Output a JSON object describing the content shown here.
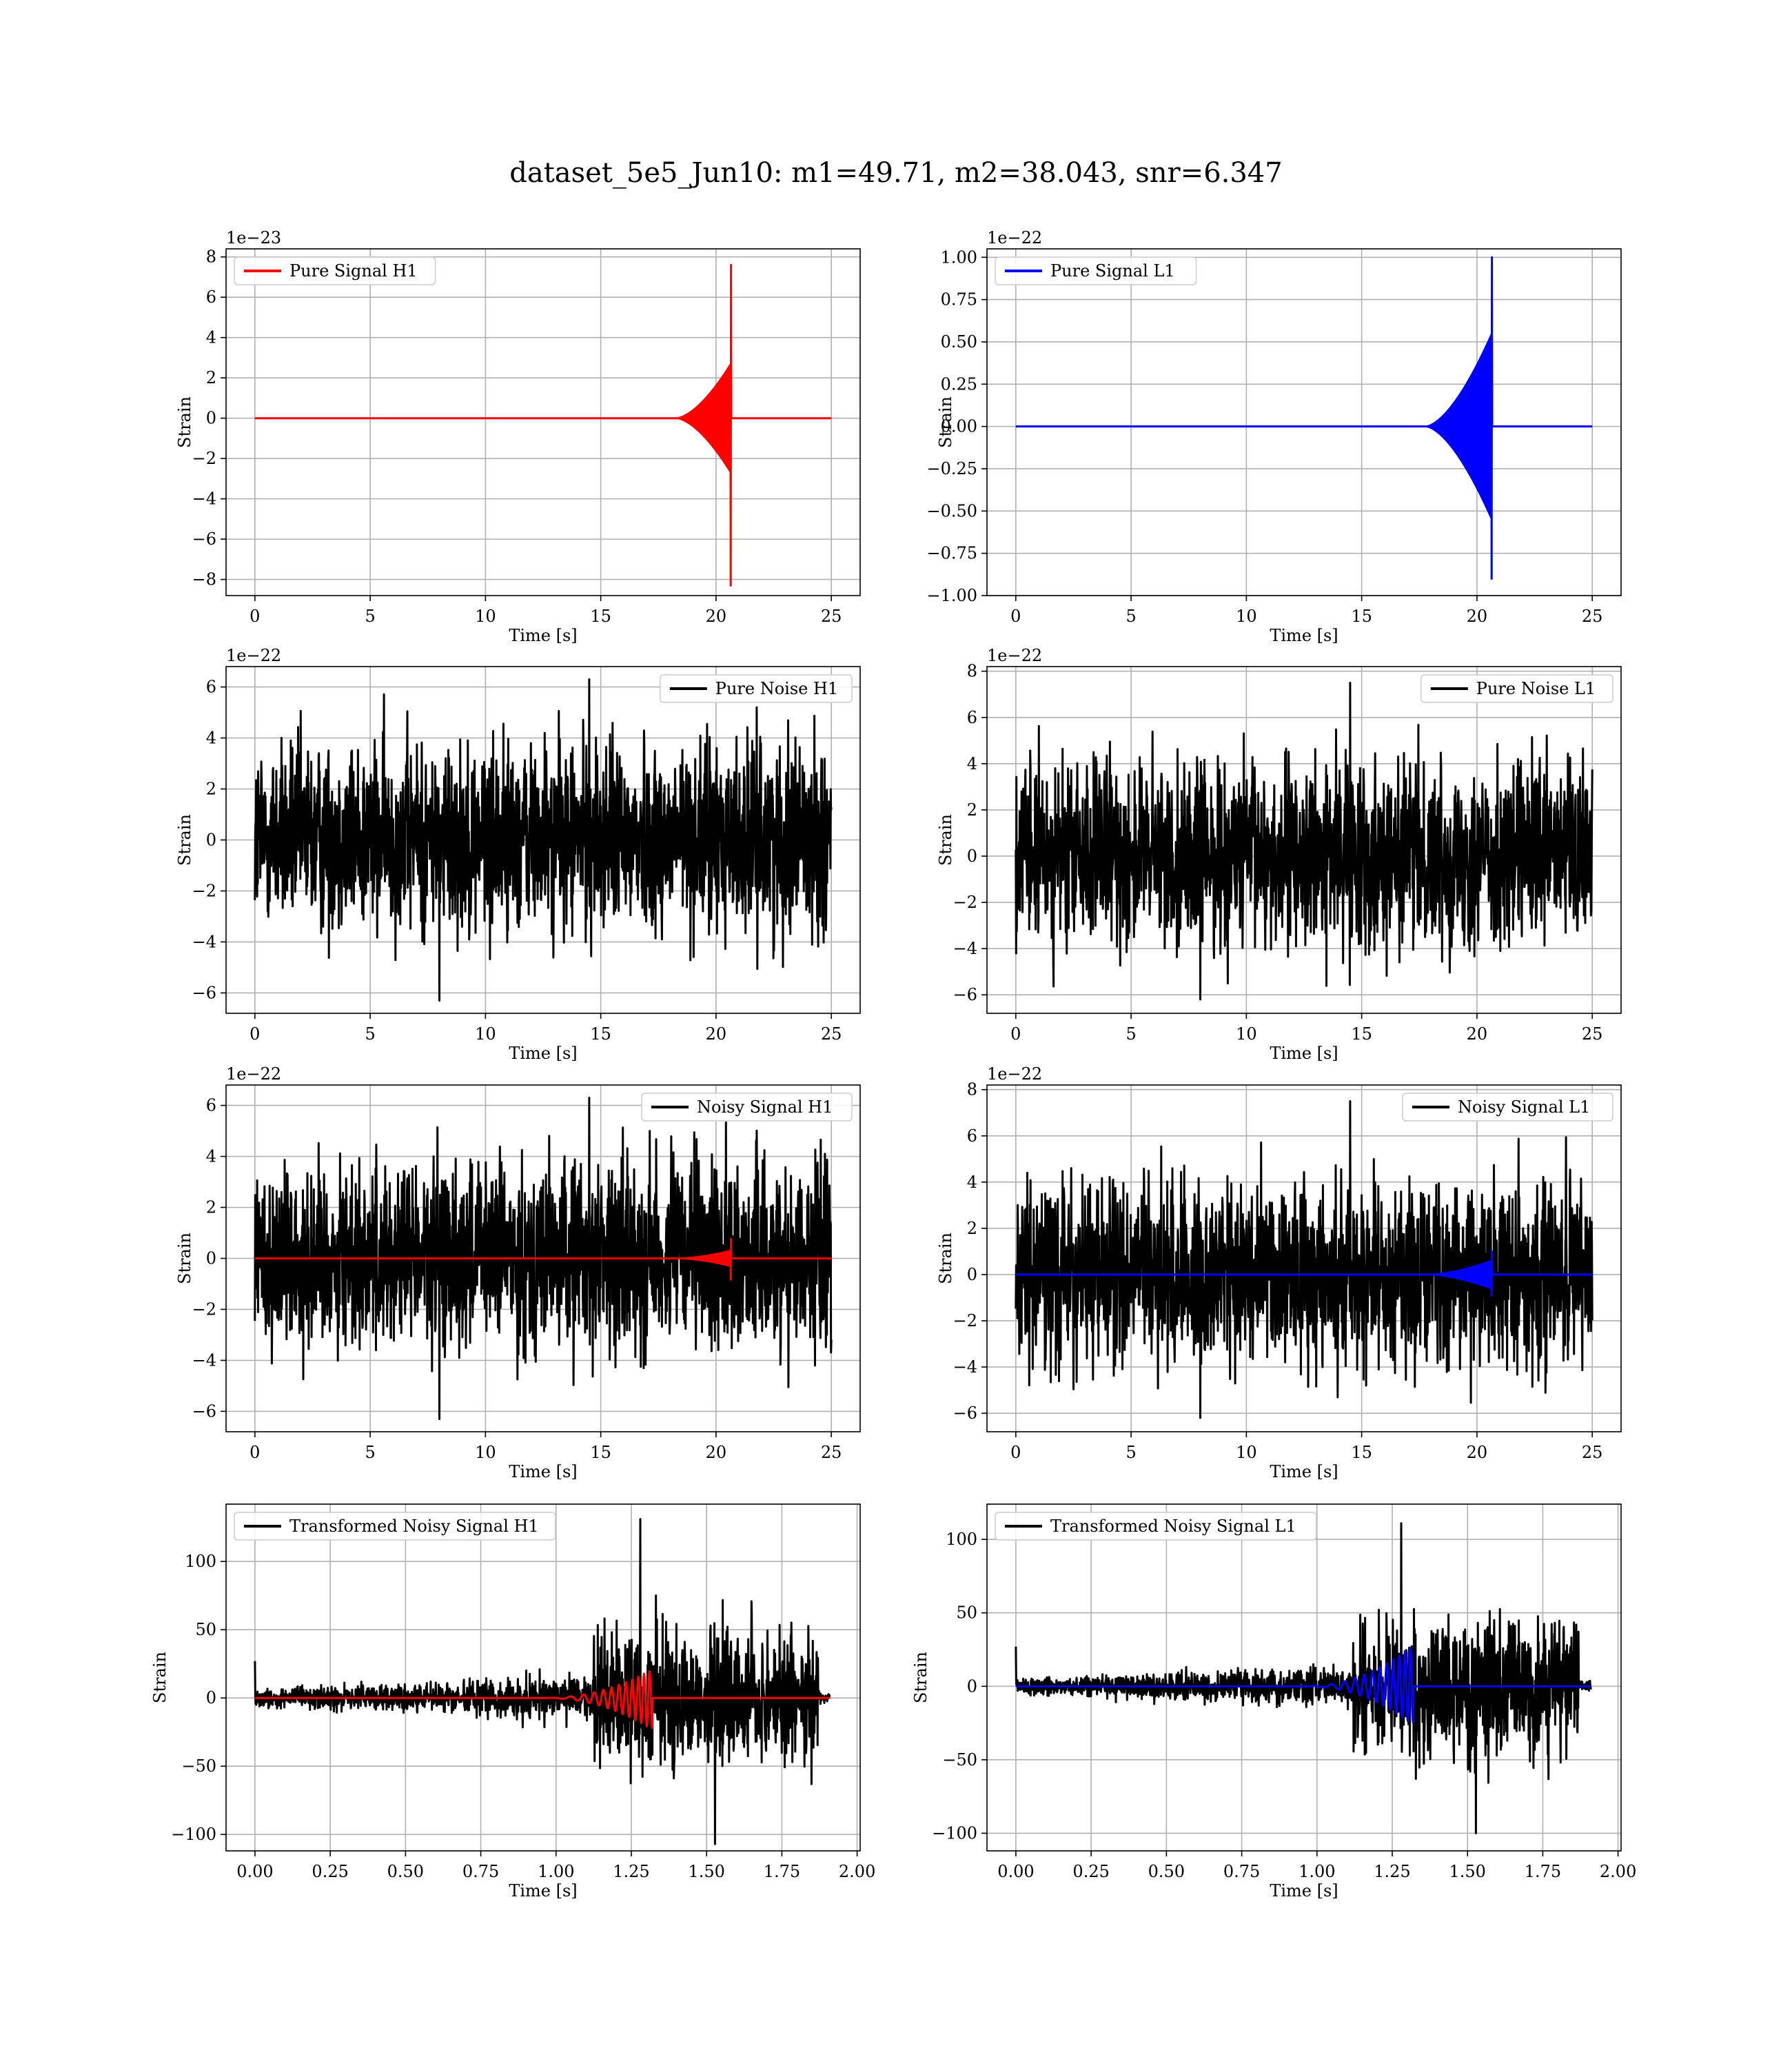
{
  "title": "dataset_5e5_Jun10: m1=49.71, m2=38.043, snr=6.347",
  "colors": {
    "h1": "#ff0000",
    "l1": "#0000ff",
    "noise": "#000000",
    "grid": "#b0b0b0"
  },
  "chart_data": [
    {
      "type": "line",
      "grid": true,
      "legend": "top-left",
      "xlabel": "Time [s]",
      "ylabel": "Strain",
      "offset_text": "1e−23",
      "xlim": [
        -1.25,
        26.25
      ],
      "ylim": [
        -8.8,
        8.4
      ],
      "xticks": [
        0,
        5,
        10,
        15,
        20,
        25
      ],
      "xtick_labels": [
        "0",
        "5",
        "10",
        "15",
        "20",
        "25"
      ],
      "yticks": [
        -8,
        -6,
        -4,
        -2,
        0,
        2,
        4,
        6,
        8
      ],
      "ytick_labels": [
        "−8",
        "−6",
        "−4",
        "−2",
        "0",
        "2",
        "4",
        "6",
        "8"
      ],
      "series": [
        {
          "name": "Pure Signal H1",
          "color": "#ff0000",
          "kind": "chirp",
          "x_range": [
            0,
            25
          ],
          "merger_time": 20.65,
          "chirp_start": 18.3,
          "peak_amplitude": 2.7,
          "peak_max": 7.6,
          "peak_min": -8.3
        }
      ]
    },
    {
      "type": "line",
      "grid": true,
      "legend": "top-left",
      "xlabel": "Time [s]",
      "ylabel": "Strain",
      "offset_text": "1e−22",
      "xlim": [
        -1.25,
        26.25
      ],
      "ylim": [
        -1.0,
        1.05
      ],
      "xticks": [
        0,
        5,
        10,
        15,
        20,
        25
      ],
      "xtick_labels": [
        "0",
        "5",
        "10",
        "15",
        "20",
        "25"
      ],
      "yticks": [
        -1.0,
        -0.75,
        -0.5,
        -0.25,
        0,
        0.25,
        0.5,
        0.75,
        1.0
      ],
      "ytick_labels": [
        "−1.00",
        "−0.75",
        "−0.50",
        "−0.25",
        "0.00",
        "0.25",
        "0.50",
        "0.75",
        "1.00"
      ],
      "series": [
        {
          "name": "Pure Signal L1",
          "color": "#0000ff",
          "kind": "chirp",
          "x_range": [
            0,
            25
          ],
          "merger_time": 20.65,
          "chirp_start": 17.8,
          "peak_amplitude": 0.55,
          "peak_max": 1.0,
          "peak_min": -0.9
        }
      ]
    },
    {
      "type": "line",
      "grid": true,
      "legend": "top-right",
      "xlabel": "Time [s]",
      "ylabel": "Strain",
      "offset_text": "1e−22",
      "xlim": [
        -1.25,
        26.25
      ],
      "ylim": [
        -6.8,
        6.8
      ],
      "xticks": [
        0,
        5,
        10,
        15,
        20,
        25
      ],
      "xtick_labels": [
        "0",
        "5",
        "10",
        "15",
        "20",
        "25"
      ],
      "yticks": [
        -6,
        -4,
        -2,
        0,
        2,
        4,
        6
      ],
      "ytick_labels": [
        "−6",
        "−4",
        "−2",
        "0",
        "2",
        "4",
        "6"
      ],
      "series": [
        {
          "name": "Pure Noise H1",
          "color": "#000000",
          "kind": "noise",
          "x_range": [
            0,
            25
          ],
          "band_max": 3.9,
          "band_min": -3.7,
          "spike_max": 6.3,
          "spike_min": -6.3
        }
      ]
    },
    {
      "type": "line",
      "grid": true,
      "legend": "top-right",
      "xlabel": "Time [s]",
      "ylabel": "Strain",
      "offset_text": "1e−22",
      "xlim": [
        -1.25,
        26.25
      ],
      "ylim": [
        -6.8,
        8.2
      ],
      "xticks": [
        0,
        5,
        10,
        15,
        20,
        25
      ],
      "xtick_labels": [
        "0",
        "5",
        "10",
        "15",
        "20",
        "25"
      ],
      "yticks": [
        -6,
        -4,
        -2,
        0,
        2,
        4,
        6,
        8
      ],
      "ytick_labels": [
        "−6",
        "−4",
        "−2",
        "0",
        "2",
        "4",
        "6",
        "8"
      ],
      "series": [
        {
          "name": "Pure Noise L1",
          "color": "#000000",
          "kind": "noise",
          "x_range": [
            0,
            25
          ],
          "band_max": 4.1,
          "band_min": -4.0,
          "spike_max": 7.5,
          "spike_min": -6.2
        }
      ]
    },
    {
      "type": "line",
      "grid": true,
      "legend": "top-right",
      "xlabel": "Time [s]",
      "ylabel": "Strain",
      "offset_text": "1e−22",
      "xlim": [
        -1.25,
        26.25
      ],
      "ylim": [
        -6.8,
        6.8
      ],
      "xticks": [
        0,
        5,
        10,
        15,
        20,
        25
      ],
      "xtick_labels": [
        "0",
        "5",
        "10",
        "15",
        "20",
        "25"
      ],
      "yticks": [
        -6,
        -4,
        -2,
        0,
        2,
        4,
        6
      ],
      "ytick_labels": [
        "−6",
        "−4",
        "−2",
        "0",
        "2",
        "4",
        "6"
      ],
      "series": [
        {
          "name": "Noisy Signal H1",
          "color": "#000000",
          "kind": "noise",
          "x_range": [
            0,
            25
          ],
          "band_max": 3.9,
          "band_min": -3.7,
          "spike_max": 6.3,
          "spike_min": -6.3
        },
        {
          "color": "#ff0000",
          "kind": "chirp",
          "x_range": [
            0,
            25
          ],
          "merger_time": 20.65,
          "chirp_start": 18.5,
          "peak_amplitude": 0.3,
          "peak_max": 0.76,
          "peak_min": -0.83
        }
      ]
    },
    {
      "type": "line",
      "grid": true,
      "legend": "top-right",
      "xlabel": "Time [s]",
      "ylabel": "Strain",
      "offset_text": "1e−22",
      "xlim": [
        -1.25,
        26.25
      ],
      "ylim": [
        -6.8,
        8.2
      ],
      "xticks": [
        0,
        5,
        10,
        15,
        20,
        25
      ],
      "xtick_labels": [
        "0",
        "5",
        "10",
        "15",
        "20",
        "25"
      ],
      "yticks": [
        -6,
        -4,
        -2,
        0,
        2,
        4,
        6,
        8
      ],
      "ytick_labels": [
        "−6",
        "−4",
        "−2",
        "0",
        "2",
        "4",
        "6",
        "8"
      ],
      "series": [
        {
          "name": "Noisy Signal L1",
          "color": "#000000",
          "kind": "noise",
          "x_range": [
            0,
            25
          ],
          "band_max": 4.1,
          "band_min": -4.0,
          "spike_max": 7.5,
          "spike_min": -6.2
        },
        {
          "color": "#0000ff",
          "kind": "chirp",
          "x_range": [
            0,
            25
          ],
          "merger_time": 20.65,
          "chirp_start": 18.0,
          "peak_amplitude": 0.6,
          "peak_max": 1.0,
          "peak_min": -0.9
        }
      ]
    },
    {
      "type": "line",
      "grid": true,
      "legend": "top-left",
      "xlabel": "Time [s]",
      "ylabel": "Strain",
      "offset_text": "",
      "xlim": [
        -0.096,
        2.01
      ],
      "ylim": [
        -112,
        142
      ],
      "xticks": [
        0,
        0.25,
        0.5,
        0.75,
        1.0,
        1.25,
        1.5,
        1.75,
        2.0
      ],
      "xtick_labels": [
        "0.00",
        "0.25",
        "0.50",
        "0.75",
        "1.00",
        "1.25",
        "1.50",
        "1.75",
        "2.00"
      ],
      "yticks": [
        -100,
        -50,
        0,
        50,
        100
      ],
      "ytick_labels": [
        "−100",
        "−50",
        "0",
        "50",
        "100"
      ],
      "series": [
        {
          "name": "Transformed Noisy Signal H1",
          "color": "#000000",
          "kind": "whitened",
          "x_range": [
            0,
            1.91
          ],
          "pre_amp": 10,
          "jump_time": 1.12,
          "post_amp": 45,
          "cut_time": 1.87,
          "spike_max": 131,
          "spike_min": -107
        },
        {
          "color": "#ff0000",
          "kind": "wchirp",
          "x_range": [
            0,
            1.91
          ],
          "chirp_start": 0.95,
          "merger_time": 1.31,
          "peak_max": 20,
          "peak_min": -22
        }
      ]
    },
    {
      "type": "line",
      "grid": true,
      "legend": "top-left",
      "xlabel": "Time [s]",
      "ylabel": "Strain",
      "offset_text": "",
      "xlim": [
        -0.096,
        2.01
      ],
      "ylim": [
        -112,
        124
      ],
      "xticks": [
        0,
        0.25,
        0.5,
        0.75,
        1.0,
        1.25,
        1.5,
        1.75,
        2.0
      ],
      "xtick_labels": [
        "0.00",
        "0.25",
        "0.50",
        "0.75",
        "1.00",
        "1.25",
        "1.50",
        "1.75",
        "2.00"
      ],
      "yticks": [
        -100,
        -50,
        0,
        50,
        100
      ],
      "ytick_labels": [
        "−100",
        "−50",
        "0",
        "50",
        "100"
      ],
      "series": [
        {
          "name": "Transformed Noisy Signal L1",
          "color": "#000000",
          "kind": "whitened",
          "x_range": [
            0,
            1.91
          ],
          "pre_amp": 8,
          "jump_time": 1.12,
          "post_amp": 42,
          "cut_time": 1.87,
          "spike_max": 111,
          "spike_min": -100
        },
        {
          "color": "#0000ff",
          "kind": "wchirp",
          "x_range": [
            0,
            1.91
          ],
          "chirp_start": 0.95,
          "merger_time": 1.31,
          "peak_max": 27,
          "peak_min": -25
        }
      ]
    }
  ]
}
